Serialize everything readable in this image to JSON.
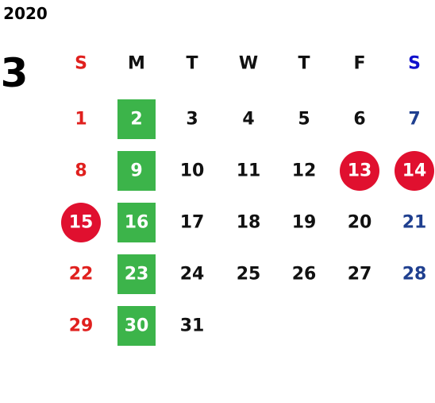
{
  "year": "2020",
  "month": "3",
  "weekdays": [
    "S",
    "M",
    "T",
    "W",
    "T",
    "F",
    "S"
  ],
  "weeks": [
    [
      {
        "text": "1"
      },
      {
        "text": "2",
        "highlight": "box"
      },
      {
        "text": "3"
      },
      {
        "text": "4"
      },
      {
        "text": "5"
      },
      {
        "text": "6"
      },
      {
        "text": "7"
      }
    ],
    [
      {
        "text": "8"
      },
      {
        "text": "9",
        "highlight": "box"
      },
      {
        "text": "10"
      },
      {
        "text": "11"
      },
      {
        "text": "12"
      },
      {
        "text": "13",
        "highlight": "circle"
      },
      {
        "text": "14",
        "highlight": "circle"
      }
    ],
    [
      {
        "text": "15",
        "highlight": "circle"
      },
      {
        "text": "16",
        "highlight": "box"
      },
      {
        "text": "17"
      },
      {
        "text": "18"
      },
      {
        "text": "19"
      },
      {
        "text": "20"
      },
      {
        "text": "21"
      }
    ],
    [
      {
        "text": "22"
      },
      {
        "text": "23",
        "highlight": "box"
      },
      {
        "text": "24"
      },
      {
        "text": "25"
      },
      {
        "text": "26"
      },
      {
        "text": "27"
      },
      {
        "text": "28"
      }
    ],
    [
      {
        "text": "29"
      },
      {
        "text": "30",
        "highlight": "box"
      },
      {
        "text": "31"
      }
    ]
  ]
}
